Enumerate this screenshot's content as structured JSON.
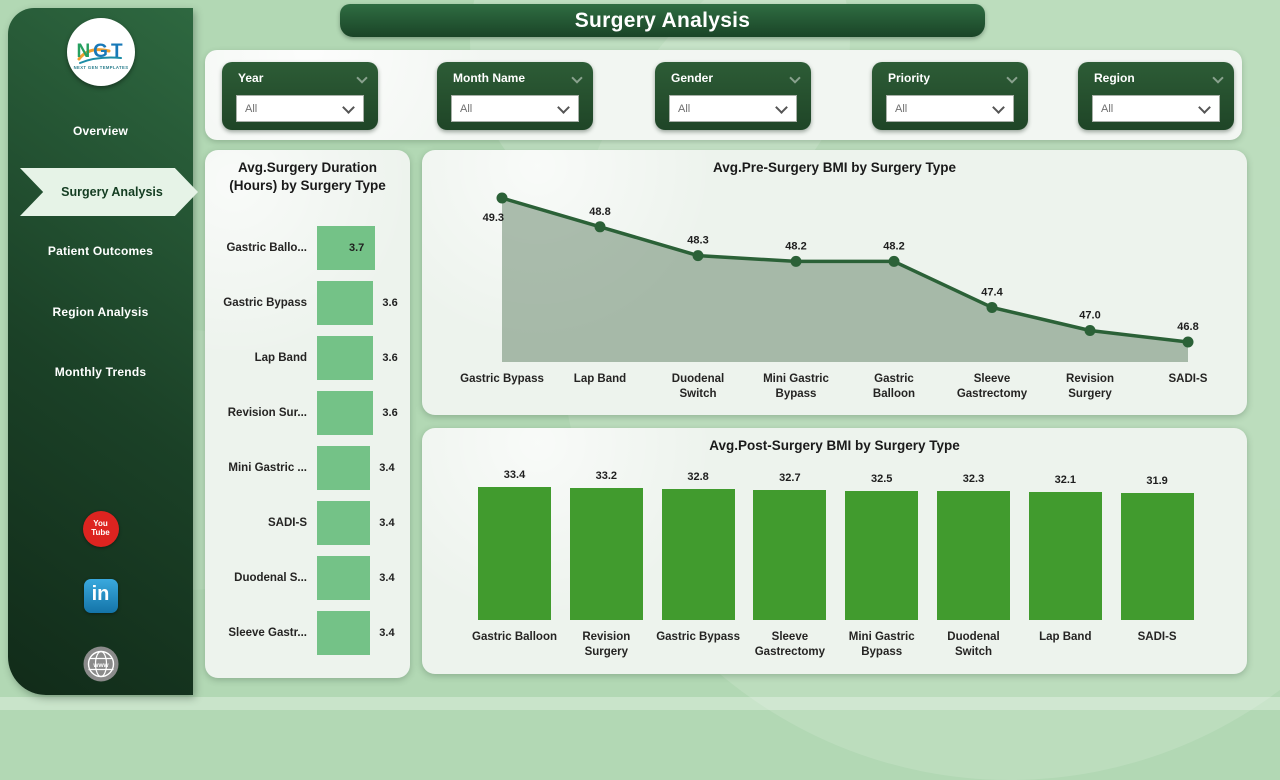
{
  "app": {
    "title": "Surgery Analysis"
  },
  "logo": {
    "text": "NGT",
    "subtext": "NEXT GEN TEMPLATES"
  },
  "sidebar": {
    "items": [
      {
        "label": "Overview",
        "active": false
      },
      {
        "label": "Surgery Analysis",
        "active": true
      },
      {
        "label": "Patient Outcomes",
        "active": false
      },
      {
        "label": "Region Analysis",
        "active": false
      },
      {
        "label": "Monthly Trends",
        "active": false
      }
    ],
    "social": [
      {
        "name": "youtube-icon",
        "text": "You Tube"
      },
      {
        "name": "linkedin-icon",
        "text": "in"
      },
      {
        "name": "website-globe-icon",
        "text": "www"
      }
    ]
  },
  "filters": [
    {
      "label": "Year",
      "value": "All"
    },
    {
      "label": "Month Name",
      "value": "All"
    },
    {
      "label": "Gender",
      "value": "All"
    },
    {
      "label": "Priority",
      "value": "All"
    },
    {
      "label": "Region",
      "value": "All"
    }
  ],
  "colors": {
    "background": "#b2d8b4",
    "sidebar_dark_green": "#1b4127",
    "card_green": "#27522f",
    "duration_bar": "#74c287",
    "area_line": "#2b6137",
    "area_fill": "rgba(96,128,99,0.50)",
    "post_bar": "#419b2e",
    "panel": "#edf3ed"
  },
  "chart_data": [
    {
      "type": "bar",
      "orientation": "horizontal",
      "title": "Avg.Surgery Duration (Hours) by Surgery Type",
      "categories": [
        "Gastric Ballo...",
        "Gastric Bypass",
        "Lap Band",
        "Revision Sur...",
        "Mini Gastric ...",
        "SADI-S",
        "Duodenal S...",
        "Sleeve Gastr..."
      ],
      "values": [
        3.7,
        3.6,
        3.6,
        3.6,
        3.4,
        3.4,
        3.4,
        3.4
      ],
      "xlabel": "",
      "ylabel": "",
      "grid": false,
      "legend": "none",
      "xlim": [
        0,
        3.7
      ]
    },
    {
      "type": "area",
      "title": "Avg.Pre-Surgery BMI by Surgery Type",
      "categories": [
        "Gastric Bypass",
        "Lap Band",
        "Duodenal Switch",
        "Mini Gastric Bypass",
        "Gastric Balloon",
        "Sleeve Gastrectomy",
        "Revision Surgery",
        "SADI-S"
      ],
      "tick_labels": [
        [
          "Gastric Bypass"
        ],
        [
          "Lap Band"
        ],
        [
          "Duodenal",
          "Switch"
        ],
        [
          "Mini Gastric",
          "Bypass"
        ],
        [
          "Gastric",
          "Balloon"
        ],
        [
          "Sleeve",
          "Gastrectomy"
        ],
        [
          "Revision",
          "Surgery"
        ],
        [
          "SADI-S"
        ]
      ],
      "values": [
        49.3,
        48.8,
        48.3,
        48.2,
        48.2,
        47.4,
        47.0,
        46.8
      ],
      "xlabel": "",
      "ylabel": "",
      "grid": false,
      "legend": "none",
      "ylim": [
        46.4,
        49.6
      ]
    },
    {
      "type": "bar",
      "orientation": "vertical",
      "title": "Avg.Post-Surgery BMI by Surgery Type",
      "categories": [
        "Gastric Balloon",
        "Revision Surgery",
        "Gastric Bypass",
        "Sleeve Gastrectomy",
        "Mini Gastric Bypass",
        "Duodenal Switch",
        "Lap Band",
        "SADI-S"
      ],
      "tick_labels": [
        [
          "Gastric Balloon"
        ],
        [
          "Revision",
          "Surgery"
        ],
        [
          "Gastric Bypass"
        ],
        [
          "Sleeve",
          "Gastrectomy"
        ],
        [
          "Mini Gastric",
          "Bypass"
        ],
        [
          "Duodenal",
          "Switch"
        ],
        [
          "Lap Band"
        ],
        [
          "SADI-S"
        ]
      ],
      "values": [
        33.4,
        33.2,
        32.8,
        32.7,
        32.5,
        32.3,
        32.1,
        31.9
      ],
      "xlabel": "",
      "ylabel": "",
      "grid": false,
      "legend": "none",
      "ylim": [
        0,
        33.4
      ]
    }
  ]
}
